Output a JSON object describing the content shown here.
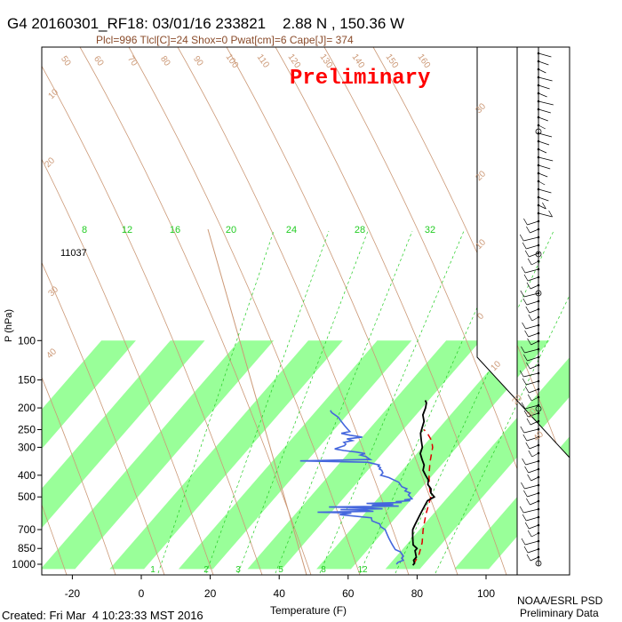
{
  "header": {
    "title": "G4 20160301_RF18: 03/01/16 233821    2.88 N , 150.36 W",
    "subtitle": "Plcl=996 Tlcl[C]=24 Shox=0 Pwat[cm]=6 Cape[J]= 374"
  },
  "watermark": {
    "text": "Preliminary",
    "color": "#ff0000"
  },
  "footer": {
    "created": "Created: Fri Mar  4 10:23:33 MST 2016",
    "org": "NOAA/ESRL PSD",
    "note": "Preliminary Data"
  },
  "colors": {
    "band_green": "#99ff99",
    "temperature": "#000000",
    "dewpoint": "#4466dd",
    "parcel": "#dd0000",
    "dry_adiabat": "#cc9977",
    "moist_adiabat": "#22bb22",
    "mixing_ratio": "#22cc22"
  },
  "chart_data": {
    "type": "skew-t log-p sounding",
    "xlabel": "Temperature (F)",
    "ylabel": "P (hPa)",
    "x_ticks": [
      "-20",
      "0",
      "20",
      "40",
      "60",
      "80",
      "100"
    ],
    "x_tick_values": [
      -20,
      0,
      20,
      40,
      60,
      80,
      100
    ],
    "y_ticks": [
      "100",
      "150",
      "200",
      "250",
      "300",
      "400",
      "500",
      "700",
      "850",
      "1000"
    ],
    "y_tick_values": [
      100,
      150,
      200,
      250,
      300,
      400,
      500,
      700,
      850,
      1000
    ],
    "xlim": [
      -28,
      112
    ],
    "ylim": [
      1050,
      100
    ],
    "height_label": {
      "text": "11037",
      "pressure": 250
    },
    "mixing_ratio_labels": [
      "8",
      "12",
      "16",
      "20",
      "24",
      "28",
      "32"
    ],
    "mixing_ratio_bottom_labels": [
      "1",
      "2",
      "3",
      "5",
      "8",
      "12"
    ],
    "dry_adiabat_labels": [
      "50",
      "60",
      "70",
      "80",
      "90",
      "100",
      "110",
      "120",
      "130",
      "140",
      "150",
      "160"
    ],
    "side_labels": [
      "30",
      "20",
      "10",
      "0",
      "10",
      "20",
      "30",
      "40",
      "10",
      "20",
      "30",
      "40"
    ],
    "temperature": {
      "pressure": [
        1010,
        990,
        960,
        930,
        900,
        870,
        850,
        820,
        790,
        760,
        730,
        700,
        670,
        640,
        610,
        580,
        550,
        520,
        500,
        480,
        460,
        440,
        420,
        400,
        380,
        360,
        340,
        320,
        300,
        280,
        260,
        245,
        230,
        215,
        200,
        190,
        185
      ],
      "value": [
        79,
        79,
        78,
        78,
        77,
        76,
        76,
        74,
        73,
        72,
        71,
        70,
        69.5,
        69,
        68.5,
        68,
        67.5,
        67,
        68,
        66,
        65,
        63,
        62,
        60,
        58,
        57,
        55,
        53,
        52,
        50,
        48,
        47,
        46,
        44,
        43,
        42,
        41
      ]
    },
    "dewpoint": {
      "pressure": [
        1000,
        980,
        960,
        940,
        920,
        900,
        880,
        860,
        840,
        820,
        800,
        780,
        760,
        740,
        720,
        700,
        680,
        660,
        640,
        620,
        600,
        590,
        585,
        580,
        575,
        570,
        565,
        560,
        555,
        550,
        545,
        540,
        535,
        530,
        525,
        520,
        515,
        510,
        500,
        490,
        480,
        470,
        460,
        450,
        440,
        430,
        420,
        410,
        400,
        390,
        380,
        375,
        370,
        365,
        360,
        355,
        350,
        345,
        340,
        335,
        330,
        325,
        320,
        315,
        310,
        305,
        300,
        295,
        290,
        285,
        280,
        275,
        270,
        265,
        260,
        255,
        250,
        240,
        230,
        220,
        210,
        205
      ],
      "value": [
        74,
        74,
        75,
        74,
        74,
        73,
        72,
        70,
        69,
        68,
        67,
        66,
        65,
        64,
        63,
        62,
        60,
        59,
        56,
        55,
        45,
        48,
        38,
        54,
        52,
        44,
        56,
        52,
        40,
        60,
        52,
        58,
        50,
        60,
        58,
        62,
        60,
        62,
        61,
        60,
        60,
        58,
        58,
        56,
        55,
        54,
        52,
        50,
        47,
        47,
        46,
        45,
        45,
        44,
        44,
        42,
        40,
        20,
        40,
        39,
        38,
        36,
        37,
        34,
        30,
        27,
        28,
        29,
        29,
        28,
        30,
        28,
        32,
        28,
        25,
        27,
        26,
        24,
        22,
        20,
        17,
        16
      ]
    },
    "parcel": {
      "pressure": [
        1000,
        900,
        800,
        700,
        600,
        500,
        450,
        400,
        350,
        300,
        280,
        260,
        250
      ],
      "value": [
        79,
        78,
        76,
        73,
        70,
        67,
        64,
        61,
        58,
        55,
        53,
        50,
        48
      ]
    }
  }
}
